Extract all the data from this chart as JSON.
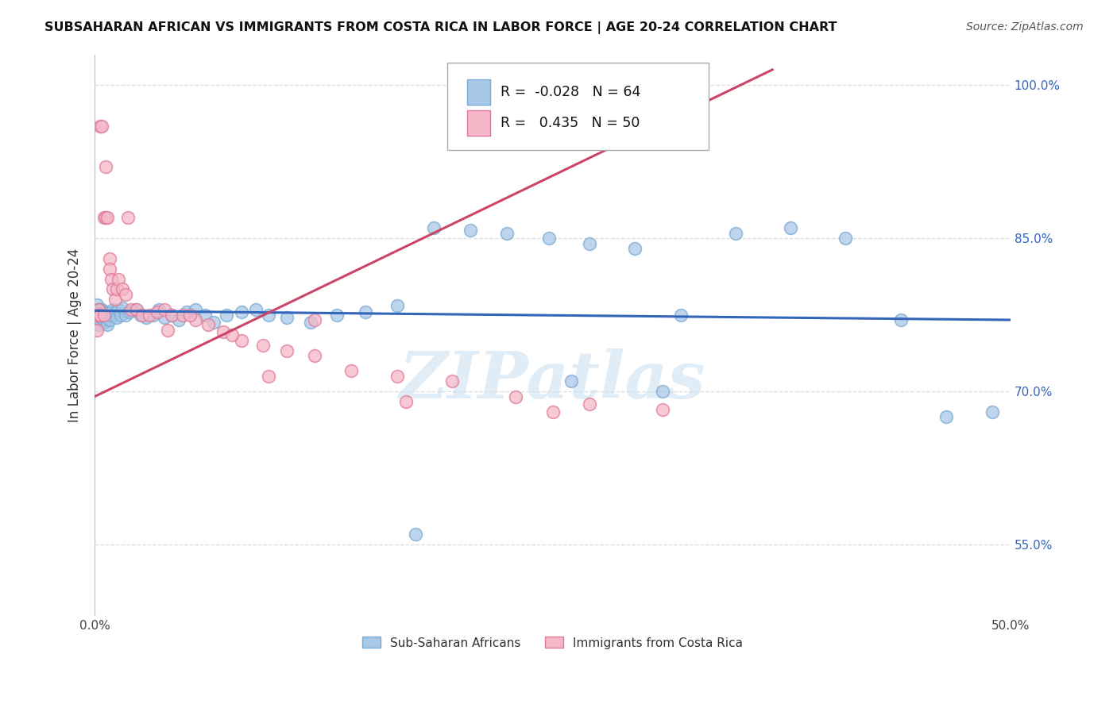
{
  "title": "SUBSAHARAN AFRICAN VS IMMIGRANTS FROM COSTA RICA IN LABOR FORCE | AGE 20-24 CORRELATION CHART",
  "source": "Source: ZipAtlas.com",
  "ylabel": "In Labor Force | Age 20-24",
  "xlim": [
    0.0,
    0.5
  ],
  "ylim": [
    0.48,
    1.03
  ],
  "blue_color": "#a8c8e8",
  "blue_edge_color": "#7aaad0",
  "pink_color": "#f4b8c8",
  "pink_edge_color": "#e07898",
  "blue_line_color": "#3366bb",
  "pink_line_color": "#cc4466",
  "R_blue": -0.028,
  "N_blue": 64,
  "R_pink": 0.435,
  "N_pink": 50,
  "blue_line_y0": 0.779,
  "blue_line_y1": 0.77,
  "pink_line_x0": 0.0,
  "pink_line_y0": 0.695,
  "pink_line_x1": 0.37,
  "pink_line_y1": 1.015,
  "background_color": "#ffffff",
  "grid_color": "#dddddd",
  "watermark": "ZIPatlas",
  "watermark_color": "#c8ddf0",
  "blue_x": [
    0.001,
    0.001,
    0.002,
    0.002,
    0.002,
    0.003,
    0.003,
    0.003,
    0.004,
    0.004,
    0.005,
    0.005,
    0.006,
    0.006,
    0.007,
    0.007,
    0.008,
    0.008,
    0.009,
    0.01,
    0.011,
    0.012,
    0.013,
    0.014,
    0.015,
    0.017,
    0.019,
    0.022,
    0.025,
    0.028,
    0.032,
    0.035,
    0.038,
    0.042,
    0.046,
    0.05,
    0.055,
    0.06,
    0.065,
    0.072,
    0.08,
    0.088,
    0.095,
    0.105,
    0.118,
    0.132,
    0.148,
    0.165,
    0.185,
    0.205,
    0.225,
    0.248,
    0.27,
    0.295,
    0.32,
    0.35,
    0.38,
    0.41,
    0.44,
    0.465,
    0.26,
    0.31,
    0.175,
    0.49
  ],
  "blue_y": [
    0.785,
    0.775,
    0.78,
    0.77,
    0.765,
    0.78,
    0.775,
    0.77,
    0.78,
    0.772,
    0.778,
    0.768,
    0.775,
    0.77,
    0.772,
    0.765,
    0.778,
    0.77,
    0.775,
    0.78,
    0.778,
    0.772,
    0.78,
    0.775,
    0.782,
    0.775,
    0.778,
    0.78,
    0.775,
    0.772,
    0.775,
    0.78,
    0.772,
    0.775,
    0.77,
    0.778,
    0.78,
    0.775,
    0.768,
    0.775,
    0.778,
    0.78,
    0.775,
    0.772,
    0.768,
    0.775,
    0.778,
    0.784,
    0.86,
    0.858,
    0.855,
    0.85,
    0.845,
    0.84,
    0.775,
    0.855,
    0.86,
    0.85,
    0.77,
    0.675,
    0.71,
    0.7,
    0.56,
    0.68
  ],
  "pink_x": [
    0.001,
    0.001,
    0.002,
    0.002,
    0.003,
    0.003,
    0.004,
    0.005,
    0.005,
    0.006,
    0.006,
    0.007,
    0.008,
    0.008,
    0.009,
    0.01,
    0.011,
    0.012,
    0.013,
    0.015,
    0.017,
    0.02,
    0.023,
    0.026,
    0.03,
    0.034,
    0.038,
    0.042,
    0.048,
    0.055,
    0.062,
    0.07,
    0.08,
    0.092,
    0.105,
    0.12,
    0.14,
    0.165,
    0.195,
    0.23,
    0.27,
    0.31,
    0.12,
    0.052,
    0.095,
    0.17,
    0.25,
    0.075,
    0.04,
    0.018
  ],
  "pink_y": [
    0.775,
    0.76,
    0.78,
    0.775,
    0.96,
    0.775,
    0.96,
    0.87,
    0.775,
    0.87,
    0.92,
    0.87,
    0.83,
    0.82,
    0.81,
    0.8,
    0.79,
    0.8,
    0.81,
    0.8,
    0.795,
    0.78,
    0.78,
    0.775,
    0.775,
    0.778,
    0.78,
    0.775,
    0.775,
    0.77,
    0.765,
    0.758,
    0.75,
    0.745,
    0.74,
    0.735,
    0.72,
    0.715,
    0.71,
    0.695,
    0.688,
    0.682,
    0.77,
    0.775,
    0.715,
    0.69,
    0.68,
    0.755,
    0.76,
    0.87
  ]
}
